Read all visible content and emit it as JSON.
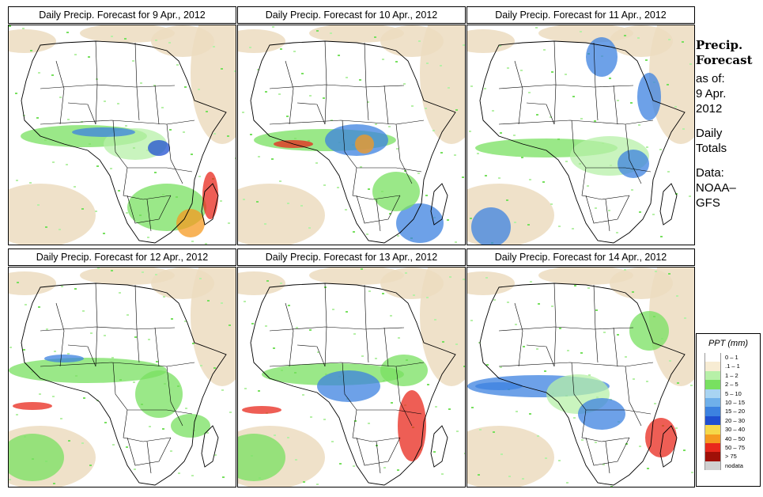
{
  "panels": [
    {
      "title": "Daily Precip. Forecast for  9 Apr., 2012"
    },
    {
      "title": "Daily Precip. Forecast for  10 Apr., 2012"
    },
    {
      "title": "Daily Precip. Forecast for  11 Apr., 2012"
    },
    {
      "title": "Daily Precip. Forecast for  12 Apr., 2012"
    },
    {
      "title": "Daily Precip. Forecast for  13 Apr., 2012"
    },
    {
      "title": "Daily Precip. Forecast for  14 Apr., 2012"
    }
  ],
  "side": {
    "title_line1": "Precip.",
    "title_line2": "Forecast",
    "asof_label": "as of:",
    "date_line1": "9 Apr.",
    "date_line2": "2012",
    "daily1": "Daily",
    "daily2": "Totals",
    "data1": "Data:",
    "data2": "NOAA–",
    "data3": "GFS"
  },
  "legend": {
    "title": "PPT (mm)",
    "items": [
      {
        "label": "0 – 1",
        "color": "#ffffff"
      },
      {
        "label": ".1 – 1",
        "color": "#f7ecd3"
      },
      {
        "label": "1 – 2",
        "color": "#b7f0a8"
      },
      {
        "label": "2 – 5",
        "color": "#78e060"
      },
      {
        "label": "5 – 10",
        "color": "#a8d4f2"
      },
      {
        "label": "10 – 15",
        "color": "#6fb0ea"
      },
      {
        "label": "15 – 20",
        "color": "#3c82e0"
      },
      {
        "label": "20 – 30",
        "color": "#1f4fd0"
      },
      {
        "label": "30 – 40",
        "color": "#f5d84a"
      },
      {
        "label": "40 – 50",
        "color": "#f59a20"
      },
      {
        "label": "50 – 75",
        "color": "#e8281c"
      },
      {
        "label": "> 75",
        "color": "#a01008"
      },
      {
        "label": "nodata",
        "color": "#d0d0d0"
      }
    ]
  },
  "colors": {
    "background": "#ffffff",
    "dry": "#ecdcc0",
    "land_outline": "#000000"
  }
}
